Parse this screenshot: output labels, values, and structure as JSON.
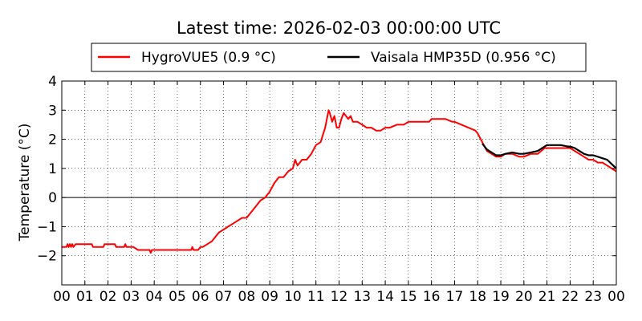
{
  "chart_data": {
    "type": "line",
    "title": "Latest time: 2026-02-03 00:00:00 UTC",
    "xlabel": "",
    "ylabel": "Temperature (°C)",
    "xlim": [
      0,
      24
    ],
    "ylim": [
      -3,
      4
    ],
    "x_ticks": [
      0,
      1,
      2,
      3,
      4,
      5,
      6,
      7,
      8,
      9,
      10,
      11,
      12,
      13,
      14,
      15,
      16,
      17,
      18,
      19,
      20,
      21,
      22,
      23,
      24
    ],
    "x_tick_labels": [
      "00",
      "01",
      "02",
      "03",
      "04",
      "05",
      "06",
      "07",
      "08",
      "09",
      "10",
      "11",
      "12",
      "13",
      "14",
      "15",
      "16",
      "17",
      "18",
      "19",
      "20",
      "21",
      "22",
      "23",
      "00"
    ],
    "y_ticks": [
      -2,
      -1,
      0,
      1,
      2,
      3,
      4
    ],
    "y_tick_labels": [
      "−2",
      "−1",
      "0",
      "1",
      "2",
      "3",
      "4"
    ],
    "grid": true,
    "zero_line": true,
    "legend_position": "top-center",
    "series": [
      {
        "name": "HygroVUE5 (0.9 °C)",
        "color": "#ff0000",
        "x": [
          0,
          0.2,
          0.25,
          0.3,
          0.35,
          0.4,
          0.45,
          0.5,
          0.6,
          0.7,
          0.8,
          1.0,
          1.3,
          1.35,
          1.8,
          1.85,
          2.3,
          2.35,
          2.7,
          2.75,
          2.8,
          2.85,
          3.0,
          3.05,
          3.1,
          3.3,
          3.8,
          3.85,
          3.9,
          4.1,
          5.6,
          5.65,
          5.7,
          5.9,
          6.0,
          6.1,
          6.3,
          6.5,
          6.6,
          6.7,
          6.8,
          7.0,
          7.2,
          7.4,
          7.6,
          7.8,
          8.0,
          8.2,
          8.4,
          8.6,
          8.8,
          9.0,
          9.2,
          9.4,
          9.6,
          9.8,
          10.0,
          10.1,
          10.2,
          10.3,
          10.4,
          10.6,
          10.8,
          11.0,
          11.2,
          11.4,
          11.55,
          11.6,
          11.7,
          11.8,
          11.9,
          12.0,
          12.1,
          12.2,
          12.3,
          12.4,
          12.5,
          12.6,
          12.7,
          12.8,
          13.0,
          13.2,
          13.4,
          13.6,
          13.8,
          14.0,
          14.2,
          14.5,
          14.8,
          15.0,
          15.3,
          15.6,
          15.9,
          16.0,
          16.3,
          16.6,
          16.9,
          17.0,
          17.3,
          17.6,
          17.9,
          18.0,
          18.2,
          18.4,
          18.6,
          18.8,
          19.0,
          19.2,
          19.5,
          19.8,
          20.0,
          20.3,
          20.6,
          20.9,
          21.0,
          21.3,
          21.6,
          21.9,
          22.0,
          22.2,
          22.4,
          22.6,
          22.8,
          23.0,
          23.2,
          23.4,
          23.6,
          23.8,
          24.0
        ],
        "y": [
          -1.7,
          -1.7,
          -1.6,
          -1.7,
          -1.6,
          -1.7,
          -1.6,
          -1.7,
          -1.6,
          -1.6,
          -1.6,
          -1.6,
          -1.6,
          -1.7,
          -1.7,
          -1.6,
          -1.6,
          -1.7,
          -1.7,
          -1.6,
          -1.7,
          -1.7,
          -1.7,
          -1.7,
          -1.7,
          -1.8,
          -1.8,
          -1.9,
          -1.8,
          -1.8,
          -1.8,
          -1.7,
          -1.8,
          -1.8,
          -1.7,
          -1.7,
          -1.6,
          -1.5,
          -1.4,
          -1.3,
          -1.2,
          -1.1,
          -1.0,
          -0.9,
          -0.8,
          -0.7,
          -0.7,
          -0.5,
          -0.3,
          -0.1,
          0.0,
          0.2,
          0.5,
          0.7,
          0.7,
          0.9,
          1.0,
          1.3,
          1.1,
          1.2,
          1.3,
          1.3,
          1.5,
          1.8,
          1.9,
          2.4,
          3.0,
          2.9,
          2.6,
          2.8,
          2.4,
          2.4,
          2.7,
          2.9,
          2.8,
          2.7,
          2.8,
          2.6,
          2.6,
          2.6,
          2.5,
          2.4,
          2.4,
          2.3,
          2.3,
          2.4,
          2.4,
          2.5,
          2.5,
          2.6,
          2.6,
          2.6,
          2.6,
          2.7,
          2.7,
          2.7,
          2.6,
          2.6,
          2.5,
          2.4,
          2.3,
          2.2,
          1.9,
          1.6,
          1.5,
          1.4,
          1.4,
          1.5,
          1.5,
          1.4,
          1.4,
          1.5,
          1.5,
          1.7,
          1.7,
          1.7,
          1.7,
          1.7,
          1.7,
          1.6,
          1.5,
          1.4,
          1.3,
          1.3,
          1.2,
          1.2,
          1.1,
          1.0,
          0.9
        ]
      },
      {
        "name": "Vaisala HMP35D (0.956 °C)",
        "color": "#000000",
        "x": [
          18.2,
          18.4,
          18.6,
          18.8,
          19.0,
          19.2,
          19.5,
          19.8,
          20.0,
          20.3,
          20.6,
          20.9,
          21.0,
          21.3,
          21.6,
          21.9,
          22.0,
          22.2,
          22.4,
          22.6,
          22.8,
          23.0,
          23.2,
          23.4,
          23.6,
          23.8,
          24.0
        ],
        "y": [
          1.85,
          1.65,
          1.55,
          1.45,
          1.45,
          1.5,
          1.55,
          1.5,
          1.5,
          1.55,
          1.6,
          1.75,
          1.8,
          1.8,
          1.8,
          1.75,
          1.75,
          1.7,
          1.6,
          1.5,
          1.45,
          1.45,
          1.4,
          1.35,
          1.3,
          1.15,
          1.0
        ]
      }
    ]
  }
}
